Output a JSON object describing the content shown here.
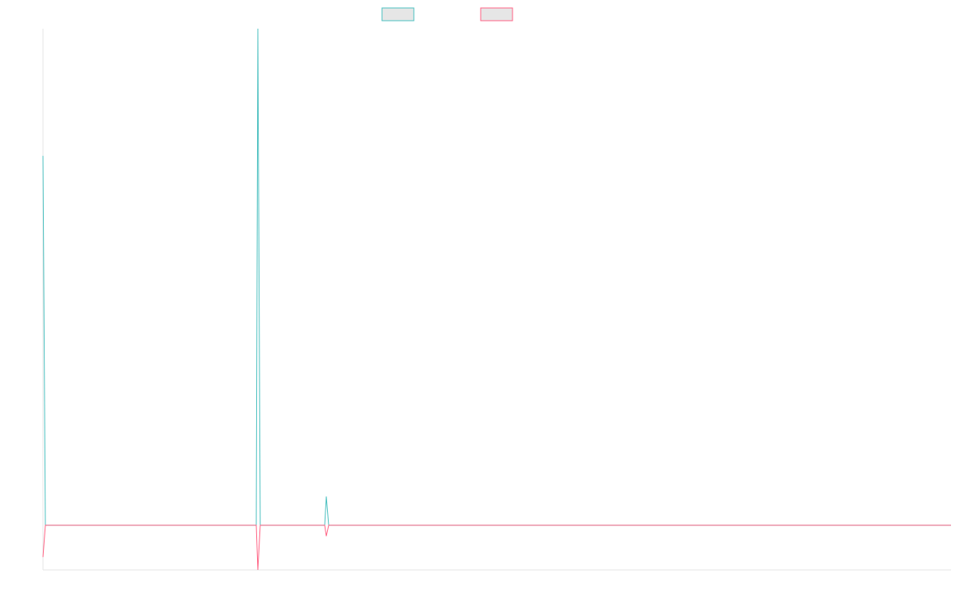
{
  "chart_data": {
    "type": "line",
    "x": [
      0,
      3,
      268,
      270,
      273,
      354,
      356,
      359,
      1141
    ],
    "xlim": [
      0,
      1141
    ],
    "ylim": [
      -9,
      100
    ],
    "series": [
      {
        "color": "#4bc0c0",
        "values": [
          74.4,
          0,
          0,
          100,
          0,
          0,
          5.8,
          0,
          0
        ]
      },
      {
        "color": "#ff6384",
        "values": [
          -6.4,
          0,
          0,
          -9,
          0,
          0,
          -2.2,
          0,
          0
        ]
      }
    ]
  }
}
